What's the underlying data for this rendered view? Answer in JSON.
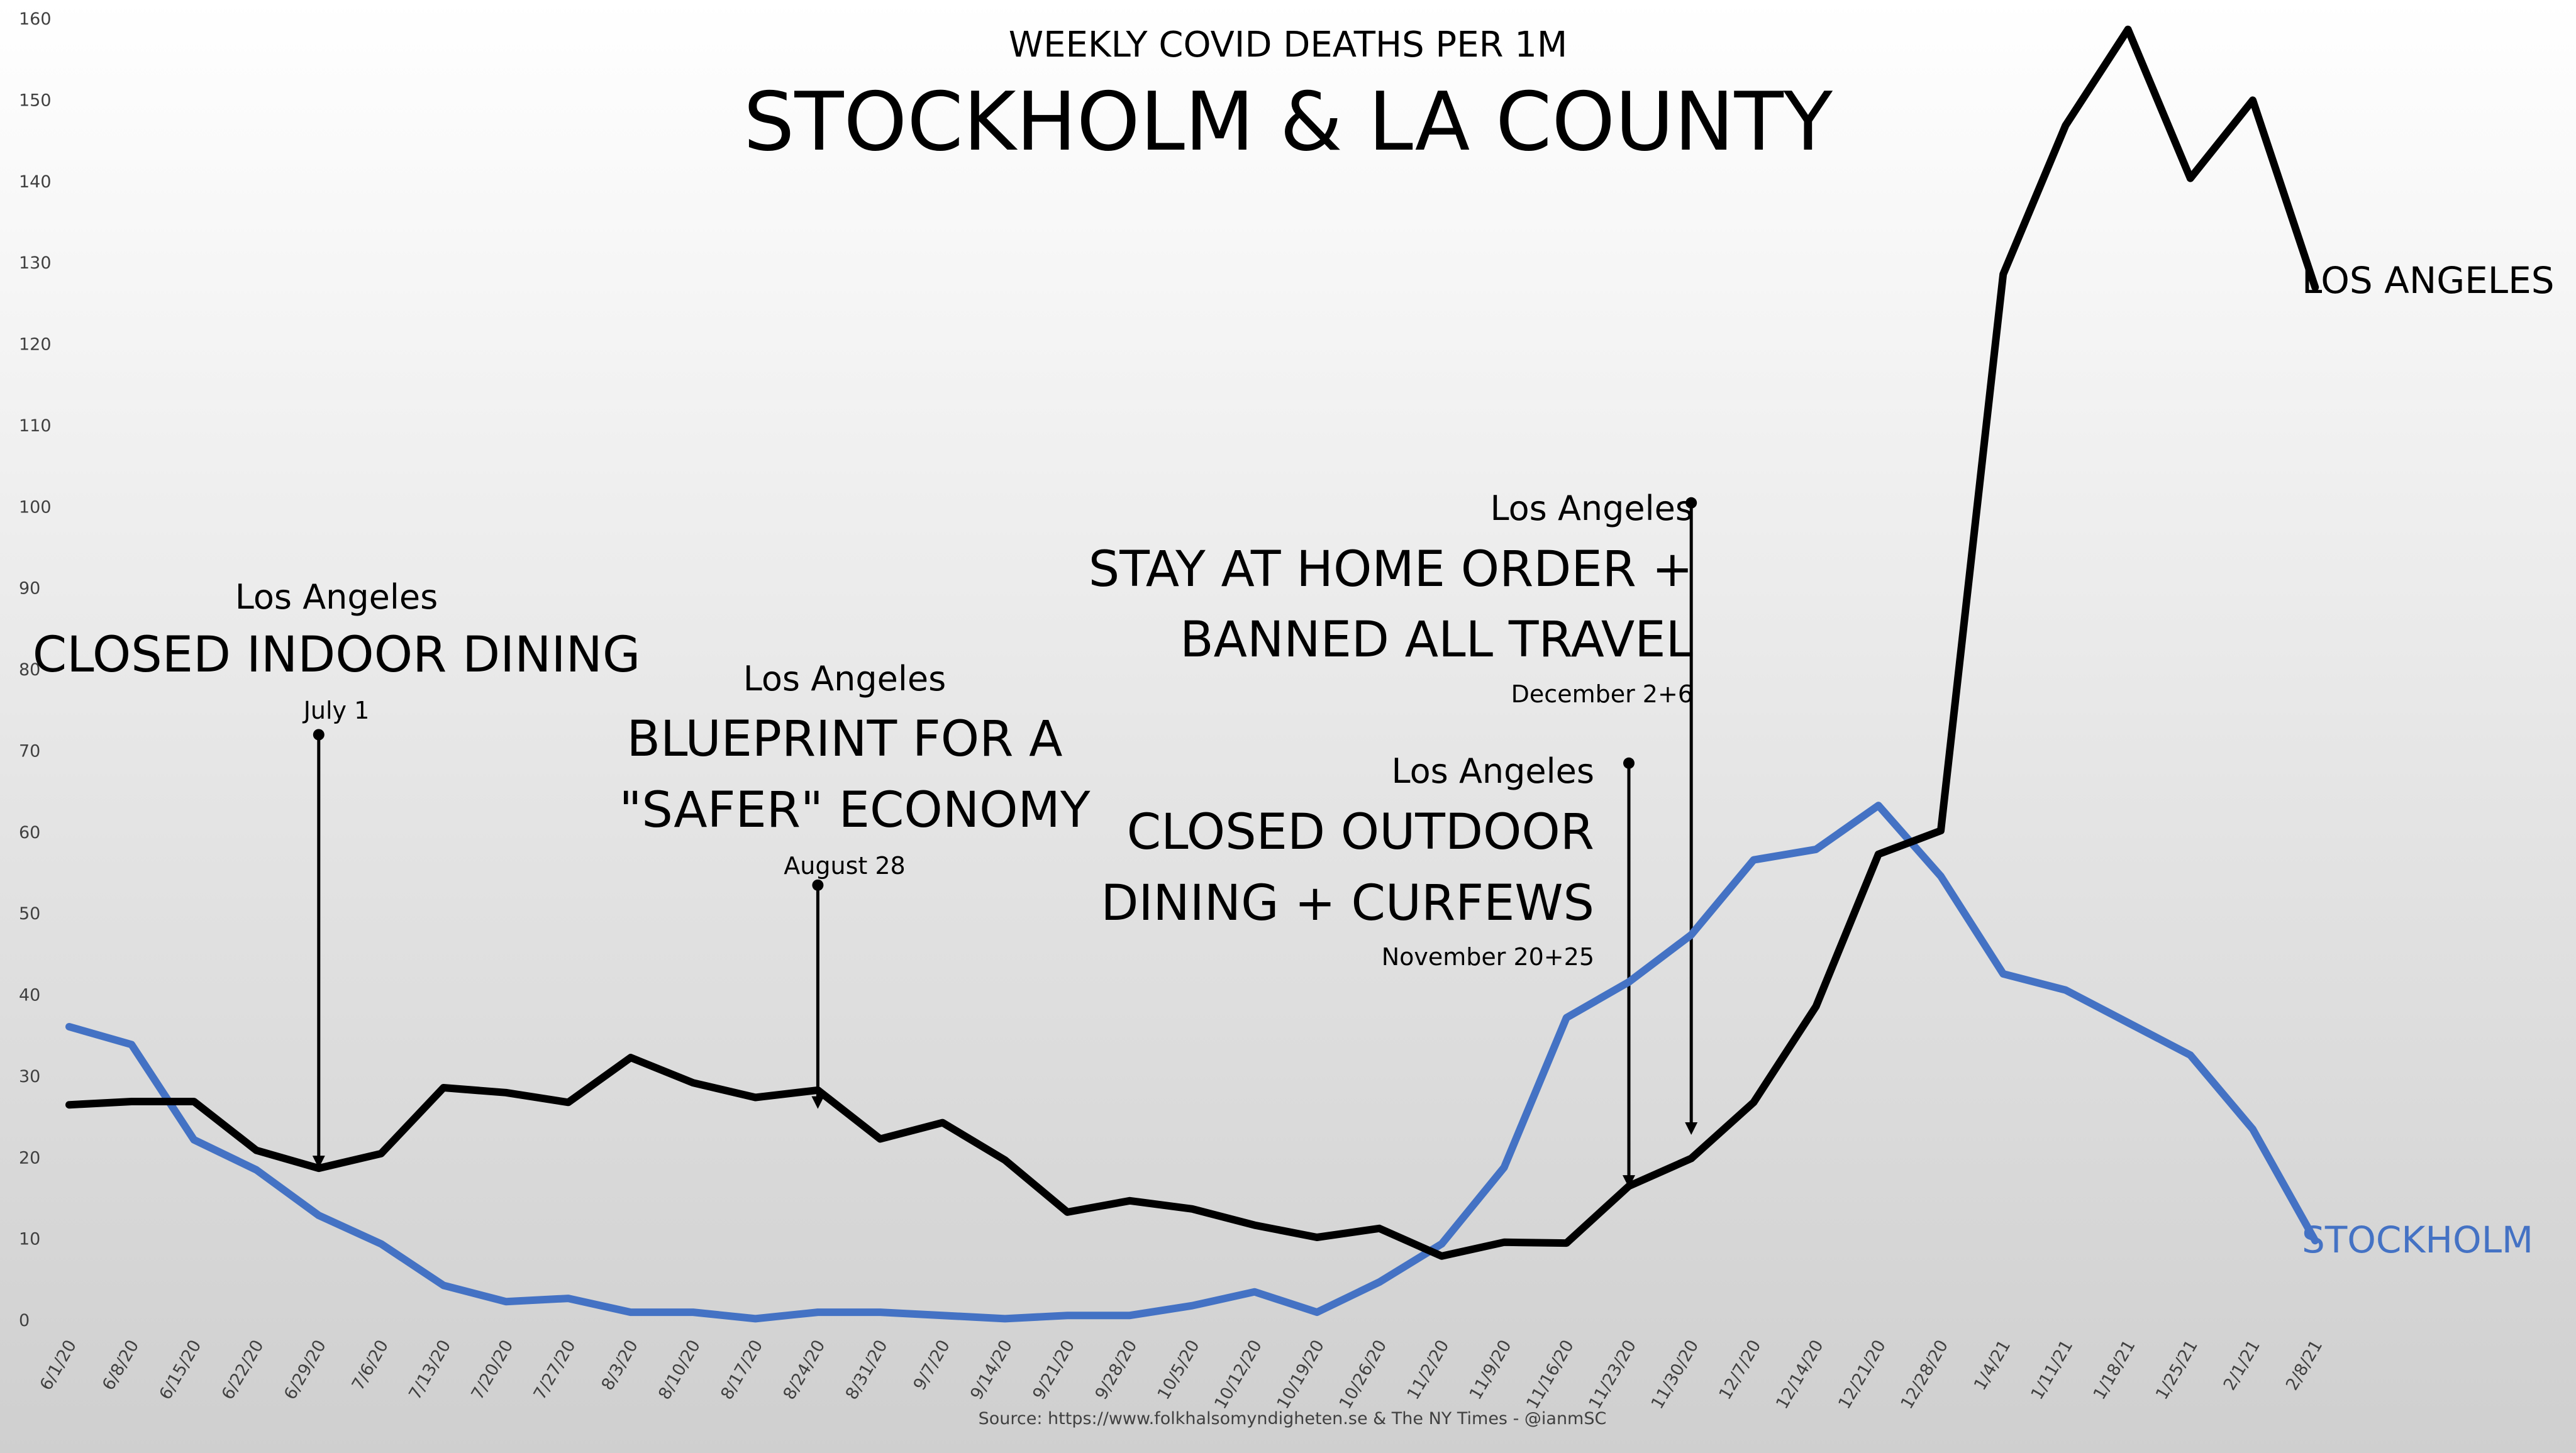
{
  "chart_data": {
    "type": "line",
    "title": "STOCKHOLM & LA COUNTY",
    "subtitle": "WEEKLY COVID DEATHS PER 1M",
    "xlabel": "",
    "ylabel": "",
    "ylim": [
      0,
      160
    ],
    "yticks": [
      0,
      10,
      20,
      30,
      40,
      50,
      60,
      70,
      80,
      90,
      100,
      110,
      120,
      130,
      140,
      150,
      160
    ],
    "grid": false,
    "legend": "inline-right",
    "categories": [
      "6/1/20",
      "6/8/20",
      "6/15/20",
      "6/22/20",
      "6/29/20",
      "7/6/20",
      "7/13/20",
      "7/20/20",
      "7/27/20",
      "8/3/20",
      "8/10/20",
      "8/17/20",
      "8/24/20",
      "8/31/20",
      "9/7/20",
      "9/14/20",
      "9/21/20",
      "9/28/20",
      "10/5/20",
      "10/12/20",
      "10/19/20",
      "10/26/20",
      "11/2/20",
      "11/9/20",
      "11/16/20",
      "11/23/20",
      "11/30/20",
      "12/7/20",
      "12/14/20",
      "12/21/20",
      "12/28/20",
      "1/4/21",
      "1/11/21",
      "1/18/21",
      "1/25/21",
      "2/1/21",
      "2/8/21"
    ],
    "series": [
      {
        "name": "LOS ANGELES",
        "color": "#000000",
        "values": [
          26.5,
          26.9,
          26.9,
          20.9,
          18.7,
          20.5,
          28.6,
          28.0,
          26.8,
          32.3,
          29.2,
          27.4,
          28.3,
          22.3,
          24.3,
          19.7,
          13.3,
          14.7,
          13.7,
          11.7,
          10.2,
          11.3,
          7.9,
          9.6,
          9.5,
          16.5,
          19.9,
          26.8,
          38.6,
          57.3,
          60.2,
          128.6,
          146.9,
          158.7,
          140.4,
          150.0,
          127.0
        ]
      },
      {
        "name": "STOCKHOLM",
        "color": "#4472C4",
        "values": [
          36.1,
          33.9,
          22.2,
          18.5,
          12.9,
          9.4,
          4.3,
          2.3,
          2.7,
          1.0,
          1.0,
          0.2,
          1.0,
          1.0,
          0.6,
          0.2,
          0.6,
          0.6,
          1.8,
          3.5,
          1.0,
          4.7,
          9.4,
          18.8,
          37.2,
          41.6,
          47.4,
          56.6,
          57.9,
          63.3,
          54.6,
          42.6,
          40.6,
          36.6,
          32.6,
          23.5,
          9.8
        ]
      }
    ],
    "annotations": [
      {
        "location": "Los Angeles",
        "event": "CLOSED INDOOR DINING",
        "date": "July 1",
        "at": "6/29/20"
      },
      {
        "location": "Los Angeles",
        "event": "BLUEPRINT FOR A \"SAFER\" ECONOMY",
        "date": "August 28",
        "at": "8/24/20"
      },
      {
        "location": "Los Angeles",
        "event": "CLOSED OUTDOOR DINING + CURFEWS",
        "date": "November 20+25",
        "at": "11/23/20"
      },
      {
        "location": "Los Angeles",
        "event": "STAY AT HOME ORDER + BANNED ALL TRAVEL",
        "date": "December 2+6",
        "at": "11/30/20"
      }
    ],
    "source": "Source: https://www.folkhalsomyndigheten.se & The NY Times - @ianmSC"
  }
}
